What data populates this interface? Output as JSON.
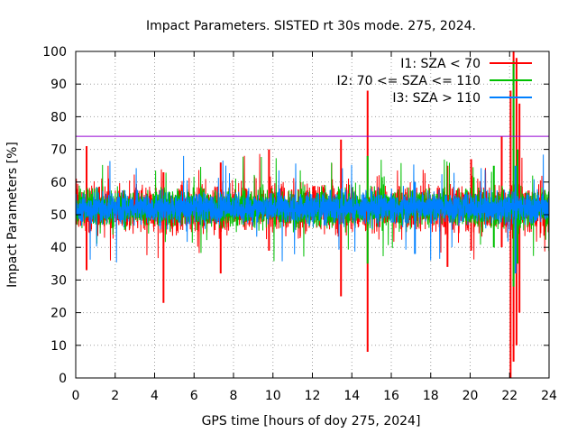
{
  "chart_data": {
    "type": "line",
    "title": "Impact Parameters. SISTED rt 30s mode. 275, 2024.",
    "xlabel": "GPS time [hours of doy 275, 2024]",
    "ylabel": "Impact Parameters [%]",
    "xlim": [
      0,
      24
    ],
    "ylim": [
      0,
      100
    ],
    "xticks": [
      0,
      2,
      4,
      6,
      8,
      10,
      12,
      14,
      16,
      18,
      20,
      22,
      24
    ],
    "yticks": [
      0,
      10,
      20,
      30,
      40,
      50,
      60,
      70,
      80,
      90,
      100
    ],
    "grid": true,
    "legend_position": "top-right",
    "threshold_line": {
      "value": 74,
      "color": "#9400d3"
    },
    "series": [
      {
        "name": "I1: SZA < 70",
        "color": "#ff0000",
        "baseline": 52,
        "spread": 5,
        "spikes": [
          {
            "x": 0.55,
            "low": 33,
            "high": 71
          },
          {
            "x": 4.45,
            "low": 23,
            "high": 63
          },
          {
            "x": 7.35,
            "low": 32,
            "high": 66
          },
          {
            "x": 9.8,
            "low": 39,
            "high": 70
          },
          {
            "x": 13.45,
            "low": 25,
            "high": 73
          },
          {
            "x": 14.8,
            "low": 8,
            "high": 88
          },
          {
            "x": 18.85,
            "low": 34,
            "high": 65
          },
          {
            "x": 20.05,
            "low": 39,
            "high": 67
          },
          {
            "x": 21.6,
            "low": 40,
            "high": 74
          },
          {
            "x": 22.05,
            "low": 0,
            "high": 88
          },
          {
            "x": 22.2,
            "low": 5,
            "high": 100
          },
          {
            "x": 22.35,
            "low": 10,
            "high": 98
          },
          {
            "x": 22.5,
            "low": 20,
            "high": 84
          }
        ]
      },
      {
        "name": "I2: 70 <= SZA <= 110",
        "color": "#00c000",
        "baseline": 52,
        "spread": 4,
        "spikes": [
          {
            "x": 14.8,
            "low": 35,
            "high": 68
          },
          {
            "x": 21.2,
            "low": 40,
            "high": 65
          },
          {
            "x": 22.2,
            "low": 28,
            "high": 97
          },
          {
            "x": 22.4,
            "low": 35,
            "high": 70
          }
        ]
      },
      {
        "name": "I3: SZA > 110",
        "color": "#0080ff",
        "baseline": 52,
        "spread": 3.2,
        "spikes": [
          {
            "x": 17.2,
            "low": 38,
            "high": 60
          },
          {
            "x": 22.3,
            "low": 32,
            "high": 65
          }
        ]
      }
    ]
  }
}
